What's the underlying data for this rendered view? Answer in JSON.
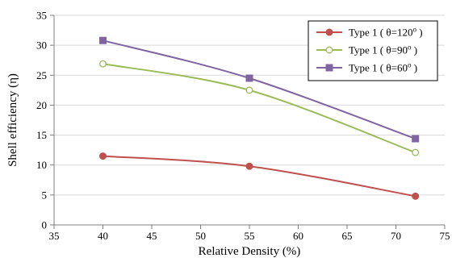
{
  "chart_data": {
    "type": "line",
    "title": "",
    "xlabel": "Relative Density (%)",
    "ylabel": "Shell efficiency (η)",
    "xlim": [
      35,
      75
    ],
    "ylim": [
      0,
      35
    ],
    "xticks": [
      35,
      40,
      45,
      50,
      55,
      60,
      65,
      70,
      75
    ],
    "yticks": [
      0,
      5,
      10,
      15,
      20,
      25,
      30,
      35
    ],
    "grid": "horizontal",
    "legend_position": "top-right",
    "series": [
      {
        "name": "Type 1 ( θ=120",
        "name_sup": "o",
        "name_end": ")",
        "marker": "filled-circle",
        "color": "#c0504d",
        "x": [
          40,
          55,
          72
        ],
        "y": [
          11.5,
          9.8,
          4.8
        ]
      },
      {
        "name": "Type 1 ( θ=90",
        "name_sup": "o",
        "name_end": ")",
        "marker": "open-circle",
        "color": "#9bbb59",
        "x": [
          40,
          55,
          72
        ],
        "y": [
          26.9,
          22.5,
          12.1
        ]
      },
      {
        "name": "Type 1 ( θ=60",
        "name_sup": "o",
        "name_end": ")",
        "marker": "filled-square",
        "color": "#8064a2",
        "x": [
          40,
          55,
          72
        ],
        "y": [
          30.8,
          24.5,
          14.4
        ]
      }
    ]
  }
}
